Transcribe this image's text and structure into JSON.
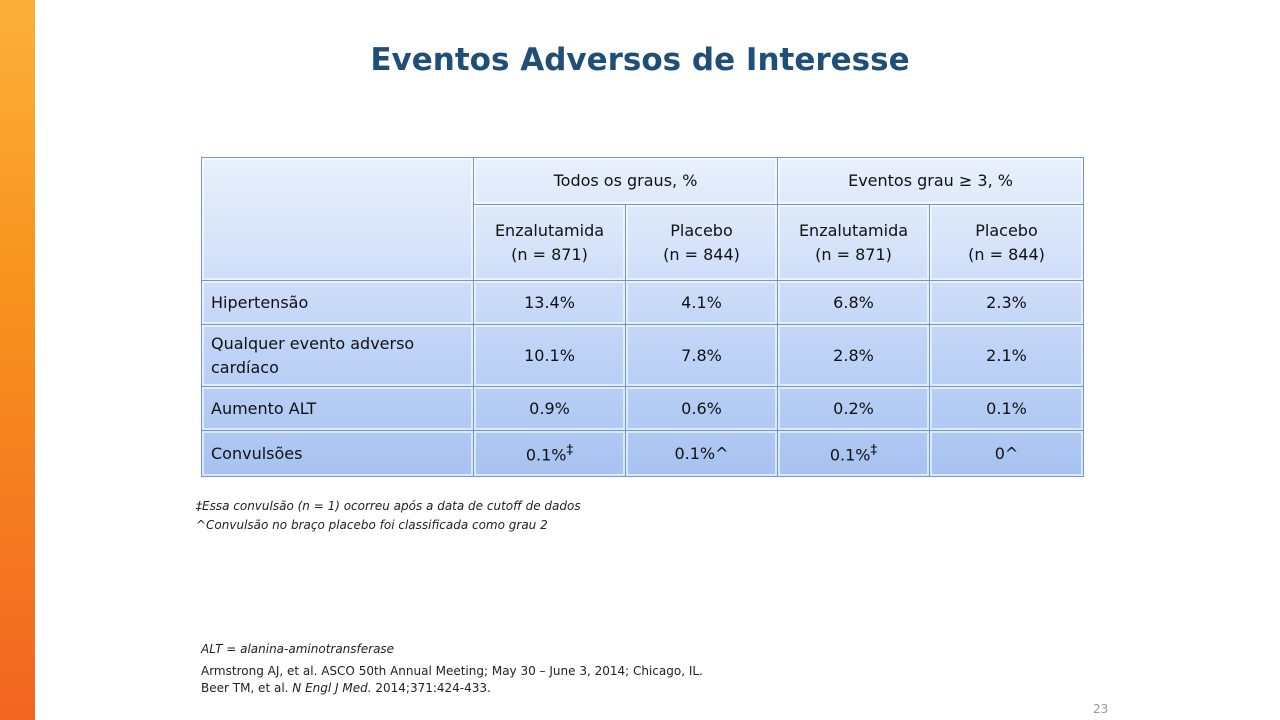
{
  "colors": {
    "title": "#1f4e79",
    "accent_bar": "#f7931e",
    "table_border": "#6f97d8"
  },
  "title": "Eventos Adversos de Interesse",
  "table": {
    "group_headers": [
      "Todos os graus, %",
      "Eventos grau ≥ 3, %"
    ],
    "sub_headers": [
      {
        "line1": "Enzalutamida",
        "line2": "(n = 871)"
      },
      {
        "line1": "Placebo",
        "line2": "(n = 844)"
      },
      {
        "line1": "Enzalutamida",
        "line2": "(n = 871)"
      },
      {
        "line1": "Placebo",
        "line2": "(n = 844)"
      }
    ],
    "rows": [
      {
        "label": "Hipertensão",
        "values": [
          "13.4%",
          "4.1%",
          "6.8%",
          "2.3%"
        ]
      },
      {
        "label": "Qualquer evento adverso cardíaco",
        "values": [
          "10.1%",
          "7.8%",
          "2.8%",
          "2.1%"
        ]
      },
      {
        "label": "Aumento ALT",
        "values": [
          "0.9%",
          "0.6%",
          "0.2%",
          "0.1%"
        ]
      },
      {
        "label": "Convulsões",
        "values": [
          "0.1%",
          "0.1%^",
          "0.1%",
          "0^"
        ],
        "sup": [
          "‡",
          "",
          "‡",
          ""
        ]
      }
    ]
  },
  "footnotes": [
    "‡Essa convulsão  (n = 1) ocorreu após a data de cutoff de dados",
    "^Convulsão no braço placebo foi classificada como grau 2"
  ],
  "abbrev": "ALT = alanina-aminotransferase",
  "refs": {
    "line1": "Armstrong AJ, et al. ASCO 50th Annual Meeting; May 30 – June 3, 2014;  Chicago, IL.",
    "line2_a": "Beer TM, et al. ",
    "line2_journal": "N Engl J Med.",
    "line2_b": " 2014;371:424-433."
  },
  "page_number": "23"
}
